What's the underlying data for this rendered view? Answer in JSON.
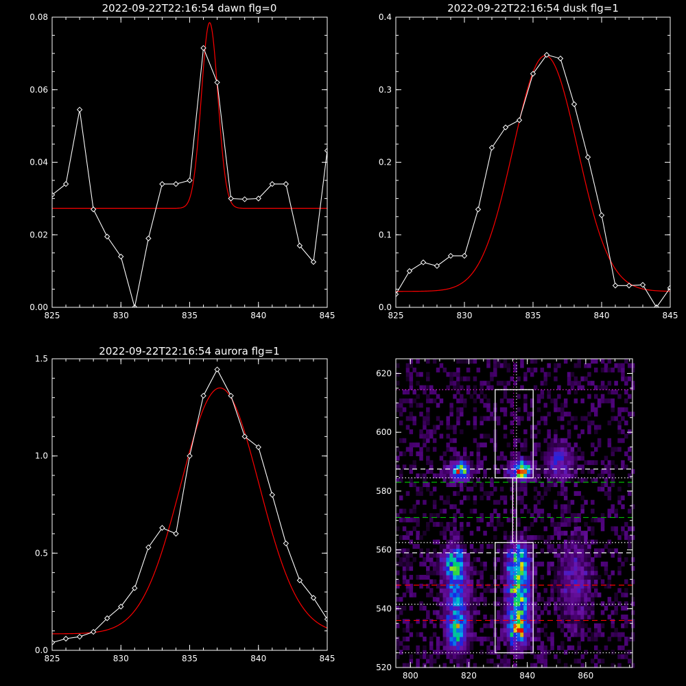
{
  "colors": {
    "background": "#000000",
    "axis": "#ffffff",
    "data_line": "#ffffff",
    "fit_line": "#ff0000",
    "green_dash": "#00c000",
    "magenta_dot": "#c000c0"
  },
  "chart_data": [
    {
      "id": "dawn",
      "type": "line",
      "title": "2022-09-22T22:16:54 dawn flg=0",
      "xlim": [
        825,
        845
      ],
      "ylim": [
        0,
        0.08
      ],
      "xticks": [
        825,
        830,
        835,
        840,
        845
      ],
      "yticks": [
        0.0,
        0.02,
        0.04,
        0.06,
        0.08
      ],
      "ytick_labels": [
        "0.00",
        "0.02",
        "0.04",
        "0.06",
        "0.08"
      ],
      "series": [
        {
          "role": "data",
          "marker": "diamond",
          "x": [
            825,
            826,
            827,
            828,
            829,
            830,
            831,
            832,
            833,
            834,
            835,
            836,
            837,
            838,
            839,
            840,
            841,
            842,
            843,
            844,
            845
          ],
          "y": [
            0.031,
            0.034,
            0.0545,
            0.027,
            0.0195,
            0.014,
            0.0,
            0.019,
            0.034,
            0.034,
            0.035,
            0.0715,
            0.062,
            0.03,
            0.0298,
            0.03,
            0.034,
            0.034,
            0.017,
            0.0125,
            0.0432
          ]
        },
        {
          "role": "fit",
          "model": "gaussian",
          "baseline": 0.0273,
          "amplitude": 0.0512,
          "center": 836.45,
          "sigma": 0.6
        }
      ]
    },
    {
      "id": "dusk",
      "type": "line",
      "title": "2022-09-22T22:16:54 dusk flg=1",
      "xlim": [
        825,
        845
      ],
      "ylim": [
        0,
        0.4
      ],
      "xticks": [
        825,
        830,
        835,
        840,
        845
      ],
      "yticks": [
        0.0,
        0.1,
        0.2,
        0.3,
        0.4
      ],
      "ytick_labels": [
        "0.0",
        "0.1",
        "0.2",
        "0.3",
        "0.4"
      ],
      "series": [
        {
          "role": "data",
          "marker": "diamond",
          "x": [
            825,
            826,
            827,
            828,
            829,
            830,
            831,
            832,
            833,
            834,
            835,
            836,
            837,
            838,
            839,
            840,
            841,
            842,
            843,
            844,
            845
          ],
          "y": [
            0.018,
            0.05,
            0.062,
            0.057,
            0.071,
            0.071,
            0.135,
            0.22,
            0.248,
            0.258,
            0.322,
            0.348,
            0.343,
            0.28,
            0.207,
            0.127,
            0.03,
            0.03,
            0.031,
            0.0,
            0.027
          ]
        },
        {
          "role": "fit",
          "model": "gaussian",
          "baseline": 0.022,
          "amplitude": 0.325,
          "center": 835.9,
          "sigma": 2.35
        }
      ]
    },
    {
      "id": "aurora",
      "type": "line",
      "title": "2022-09-22T22:16:54 aurora flg=1",
      "xlim": [
        825,
        845
      ],
      "ylim": [
        0,
        1.5
      ],
      "xticks": [
        825,
        830,
        835,
        840,
        845
      ],
      "yticks": [
        0.0,
        0.5,
        1.0,
        1.5
      ],
      "ytick_labels": [
        "0.0",
        "0.5",
        "1.0",
        "1.5"
      ],
      "series": [
        {
          "role": "data",
          "marker": "diamond",
          "x": [
            825,
            826,
            827,
            828,
            829,
            830,
            831,
            832,
            833,
            834,
            835,
            836,
            837,
            838,
            839,
            840,
            841,
            842,
            843,
            844,
            845
          ],
          "y": [
            0.04,
            0.06,
            0.07,
            0.095,
            0.165,
            0.225,
            0.32,
            0.53,
            0.63,
            0.6,
            1.0,
            1.31,
            1.445,
            1.31,
            1.1,
            1.045,
            0.8,
            0.55,
            0.36,
            0.27,
            0.16
          ]
        },
        {
          "role": "fit",
          "model": "gaussian",
          "baseline": 0.085,
          "amplitude": 1.265,
          "center": 837.2,
          "sigma": 2.85
        }
      ]
    },
    {
      "id": "image",
      "type": "heatmap",
      "title": "",
      "xlim": [
        795,
        876
      ],
      "ylim": [
        520,
        625
      ],
      "xticks": [
        800,
        820,
        840,
        860
      ],
      "yticks": [
        520,
        540,
        560,
        580,
        600,
        620
      ],
      "hotspots": [
        {
          "x": 817,
          "y": 587,
          "strength": 0.75,
          "sx": 2.2,
          "sy": 2.2
        },
        {
          "x": 838,
          "y": 587,
          "strength": 0.9,
          "sx": 2.5,
          "sy": 2.2
        },
        {
          "x": 851,
          "y": 590,
          "strength": 0.35,
          "sx": 3,
          "sy": 4
        },
        {
          "x": 837,
          "y": 555,
          "strength": 0.75,
          "sx": 2.6,
          "sy": 5
        },
        {
          "x": 837,
          "y": 534,
          "strength": 0.95,
          "sx": 2.5,
          "sy": 4
        },
        {
          "x": 815,
          "y": 555,
          "strength": 0.7,
          "sx": 2.6,
          "sy": 4
        },
        {
          "x": 816,
          "y": 533,
          "strength": 0.65,
          "sx": 2.4,
          "sy": 5
        },
        {
          "x": 816,
          "y": 544,
          "strength": 0.4,
          "sx": 3,
          "sy": 4
        },
        {
          "x": 837,
          "y": 545,
          "strength": 0.6,
          "sx": 2.6,
          "sy": 4
        },
        {
          "x": 856,
          "y": 550,
          "strength": 0.22,
          "sx": 4,
          "sy": 10
        }
      ],
      "white_dashed_y": [
        587.5,
        559
      ],
      "white_dotted_y": [
        614.5,
        584.5,
        562.5,
        541.5,
        525
      ],
      "green_dashed_y": [
        583,
        571
      ],
      "red_dashed_y": [
        548,
        536
      ],
      "magenta_dotted_y": [
        614.5
      ],
      "magenta_dotted_x": [
        835.3
      ],
      "white_dotted_x": [
        836.3
      ],
      "boxes": [
        {
          "x0": 829,
          "x1": 842,
          "y0": 584.5,
          "y1": 614.5
        },
        {
          "x0": 829,
          "x1": 842,
          "y0": 525,
          "y1": 562.5
        },
        {
          "x0": 835,
          "x1": 836.3,
          "y0": 562.5,
          "y1": 584.5
        }
      ]
    }
  ]
}
